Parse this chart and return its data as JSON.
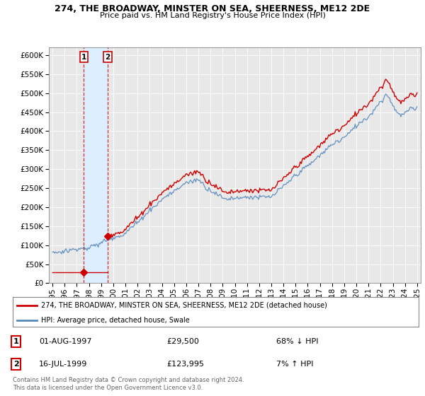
{
  "title": "274, THE BROADWAY, MINSTER ON SEA, SHEERNESS, ME12 2DE",
  "subtitle": "Price paid vs. HM Land Registry's House Price Index (HPI)",
  "legend_label_red": "274, THE BROADWAY, MINSTER ON SEA, SHEERNESS, ME12 2DE (detached house)",
  "legend_label_blue": "HPI: Average price, detached house, Swale",
  "sale1_date": "01-AUG-1997",
  "sale1_price": 29500,
  "sale1_note": "68% ↓ HPI",
  "sale2_date": "16-JUL-1999",
  "sale2_price": 123995,
  "sale2_note": "7% ↑ HPI",
  "footer": "Contains HM Land Registry data © Crown copyright and database right 2024.\nThis data is licensed under the Open Government Licence v3.0.",
  "ylim": [
    0,
    620000
  ],
  "red_color": "#cc0000",
  "blue_color": "#5588bb",
  "shade_color": "#ddeeff",
  "marker1_date_year": 1997.583,
  "marker2_date_year": 1999.538,
  "background_color": "#e8e8e8"
}
